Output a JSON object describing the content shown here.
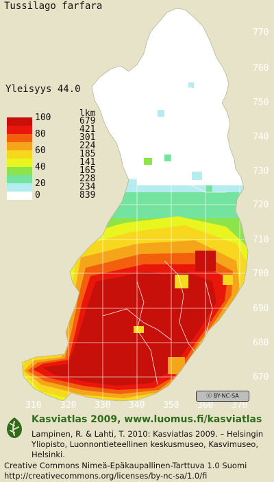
{
  "title": "Tussilago farfara",
  "frequency_label": "Yleisyys  44.0",
  "legend": {
    "count_header": "lkm",
    "classes": [
      {
        "label": "100",
        "color": "#c8100a",
        "count": "679"
      },
      {
        "label": "",
        "color": "#e8160b",
        "count": "421"
      },
      {
        "label": "80",
        "color": "#f2600d",
        "count": "301"
      },
      {
        "label": "",
        "color": "#f5a51a",
        "count": "224"
      },
      {
        "label": "60",
        "color": "#f7d81f",
        "count": "185"
      },
      {
        "label": "",
        "color": "#e9f51e",
        "count": "141"
      },
      {
        "label": "40",
        "color": "#8ce34a",
        "count": "165"
      },
      {
        "label": "",
        "color": "#74e3a0",
        "count": "228"
      },
      {
        "label": "20",
        "color": "#b5ecef",
        "count": "234"
      },
      {
        "label": "0",
        "color": "#ffffff",
        "count": "839"
      }
    ]
  },
  "axes": {
    "y_ticks": [
      "770",
      "760",
      "750",
      "740",
      "730",
      "720",
      "710",
      "700",
      "690",
      "680",
      "670"
    ],
    "x_ticks": [
      "310",
      "320",
      "330",
      "340",
      "350",
      "360",
      "370"
    ]
  },
  "license_badge": "BY-NC-SA",
  "footer": {
    "title": "Kasviatlas 2009, www.luomus.fi/kasviatlas",
    "citation": "Lampinen, R. & Lahti, T. 2010: Kasviatlas 2009. – Helsingin Yliopisto, Luonnontieteellinen keskusmuseo, Kasvimuseo, Helsinki.",
    "license_line1": "Creative Commons Nimeä-Epäkaupallinen-Tarttuva 1.0 Suomi",
    "license_line2": "http://creativecommons.org/licenses/by-nc-sa/1.0/fi"
  },
  "colors": {
    "background": "#e7e3c8",
    "land_north": "#ffffff",
    "heat_high": "#c8100a",
    "title_green": "#2f6b1b"
  }
}
